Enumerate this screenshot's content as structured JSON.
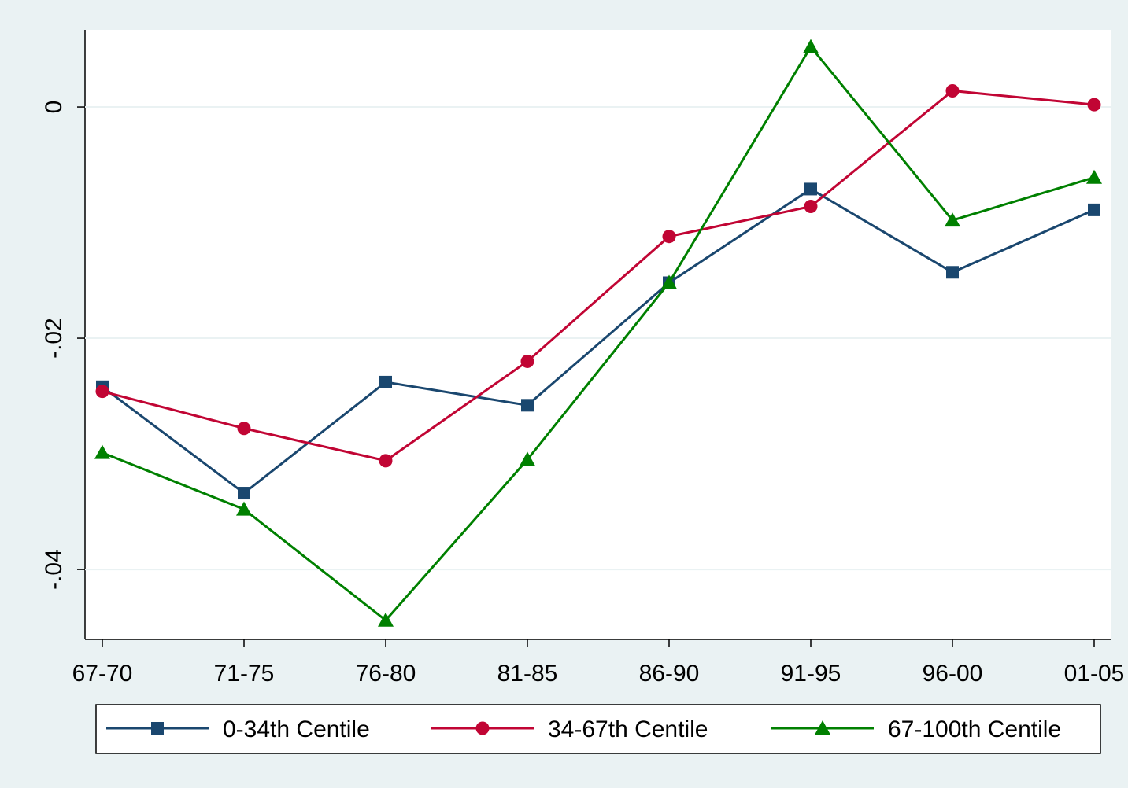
{
  "chart_data": {
    "type": "line",
    "categories": [
      "67-70",
      "71-75",
      "76-80",
      "81-85",
      "86-90",
      "91-95",
      "96-00",
      "01-05"
    ],
    "series": [
      {
        "name": "0-34th Centile",
        "color": "#1a476f",
        "marker": "square",
        "values": [
          -0.0242,
          -0.0334,
          -0.0238,
          -0.0258,
          -0.0152,
          -0.0071,
          -0.0143,
          -0.0089
        ]
      },
      {
        "name": "34-67th Centile",
        "color": "#c10534",
        "marker": "circle",
        "values": [
          -0.0246,
          -0.0278,
          -0.0306,
          -0.022,
          -0.0112,
          -0.0086,
          0.0014,
          0.0002
        ]
      },
      {
        "name": "67-100th Centile",
        "color": "#008000",
        "marker": "triangle",
        "values": [
          -0.0299,
          -0.0348,
          -0.0444,
          -0.0305,
          -0.0152,
          0.0052,
          -0.0098,
          -0.0061
        ]
      }
    ],
    "ylim": [
      -0.04605,
      0.00667
    ],
    "yticks": [
      0,
      {
        "value": -0.02,
        "label": "-.02"
      },
      {
        "value": -0.04,
        "label": "-.04"
      }
    ],
    "grid": true
  }
}
